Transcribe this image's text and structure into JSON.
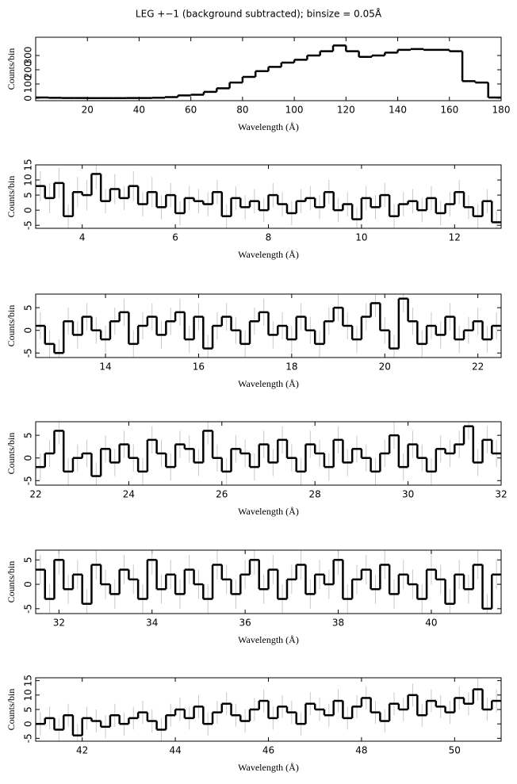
{
  "chart_data": [
    {
      "type": "line",
      "title": "LEG +−1 (background subtracted); binsize = 0.05Å",
      "x_label": "Wavelength (Å)",
      "y_label": "Counts/bin",
      "color": "#000000",
      "xlim": [
        0,
        180
      ],
      "ylim": [
        -17,
        428
      ],
      "xticks": [
        20,
        40,
        60,
        80,
        100,
        120,
        140,
        160,
        180
      ],
      "yticks": [
        0,
        100,
        200,
        300
      ],
      "x": [
        2.5,
        7.5,
        12.5,
        17.5,
        22.5,
        27.5,
        32.5,
        37.5,
        42.5,
        47.5,
        52.5,
        57.5,
        62.5,
        67.5,
        72.5,
        77.5,
        82.5,
        87.5,
        92.5,
        97.5,
        102.5,
        107.5,
        112.5,
        117.5,
        122.5,
        127.5,
        132.5,
        137.5,
        142.5,
        147.5,
        152.5,
        157.5,
        162.5,
        167.5,
        172.5,
        177.5
      ],
      "values": [
        5,
        3,
        2,
        2,
        1,
        1,
        1,
        2,
        2,
        4,
        8,
        20,
        25,
        45,
        70,
        110,
        150,
        190,
        220,
        250,
        270,
        300,
        330,
        370,
        330,
        290,
        300,
        320,
        340,
        345,
        340,
        340,
        330,
        120,
        110,
        5
      ]
    },
    {
      "type": "line",
      "x_label": "Wavelength (Å)",
      "y_label": "Counts/bin",
      "color": "#000000",
      "error_color": "#c8c8c8",
      "xlim": [
        3,
        13
      ],
      "ylim": [
        -6,
        15
      ],
      "xticks": [
        4,
        6,
        8,
        10,
        12
      ],
      "yticks": [
        -5,
        0,
        5,
        10,
        15
      ],
      "x": [
        3.1,
        3.3,
        3.5,
        3.7,
        3.9,
        4.1,
        4.3,
        4.5,
        4.7,
        4.9,
        5.1,
        5.3,
        5.5,
        5.7,
        5.9,
        6.1,
        6.3,
        6.5,
        6.7,
        6.9,
        7.1,
        7.3,
        7.5,
        7.7,
        7.9,
        8.1,
        8.3,
        8.5,
        8.7,
        8.9,
        9.1,
        9.3,
        9.5,
        9.7,
        9.9,
        10.1,
        10.3,
        10.5,
        10.7,
        10.9,
        11.1,
        11.3,
        11.5,
        11.7,
        11.9,
        12.1,
        12.3,
        12.5,
        12.7,
        12.9
      ],
      "values": [
        8,
        4,
        9,
        -2,
        6,
        5,
        12,
        3,
        7,
        4,
        8,
        2,
        6,
        1,
        5,
        -1,
        4,
        3,
        2,
        6,
        -2,
        4,
        1,
        3,
        0,
        5,
        2,
        -1,
        3,
        4,
        1,
        6,
        0,
        2,
        -3,
        4,
        1,
        5,
        -2,
        2,
        3,
        0,
        4,
        -1,
        2,
        6,
        1,
        -2,
        3,
        -4
      ],
      "errors": [
        5,
        5,
        5,
        4,
        5,
        5,
        5,
        4,
        5,
        4,
        5,
        4,
        5,
        4,
        4,
        4,
        4,
        4,
        4,
        4,
        4,
        4,
        4,
        4,
        4,
        4,
        4,
        4,
        4,
        4,
        4,
        4,
        4,
        4,
        4,
        4,
        4,
        4,
        4,
        4,
        4,
        4,
        4,
        4,
        4,
        4,
        4,
        4,
        4,
        4
      ]
    },
    {
      "type": "line",
      "x_label": "Wavelength (Å)",
      "y_label": "Counts/bin",
      "color": "#000000",
      "error_color": "#c8c8c8",
      "xlim": [
        12.5,
        22.5
      ],
      "ylim": [
        -6,
        8
      ],
      "xticks": [
        14,
        16,
        18,
        20,
        22
      ],
      "yticks": [
        -5,
        0,
        5
      ],
      "x": [
        12.6,
        12.8,
        13.0,
        13.2,
        13.4,
        13.6,
        13.8,
        14.0,
        14.2,
        14.4,
        14.6,
        14.8,
        15.0,
        15.2,
        15.4,
        15.6,
        15.8,
        16.0,
        16.2,
        16.4,
        16.6,
        16.8,
        17.0,
        17.2,
        17.4,
        17.6,
        17.8,
        18.0,
        18.2,
        18.4,
        18.6,
        18.8,
        19.0,
        19.2,
        19.4,
        19.6,
        19.8,
        20.0,
        20.2,
        20.4,
        20.6,
        20.8,
        21.0,
        21.2,
        21.4,
        21.6,
        21.8,
        22.0,
        22.2,
        22.4
      ],
      "values": [
        1,
        -3,
        -5,
        2,
        -1,
        3,
        0,
        -2,
        2,
        4,
        -3,
        1,
        3,
        -1,
        2,
        4,
        -2,
        3,
        -4,
        1,
        3,
        0,
        -3,
        2,
        4,
        -1,
        1,
        -2,
        3,
        0,
        -3,
        2,
        5,
        1,
        -2,
        3,
        6,
        0,
        -4,
        7,
        2,
        -3,
        1,
        -1,
        3,
        -2,
        0,
        2,
        -2,
        1
      ],
      "errors": [
        3,
        3,
        3,
        3,
        3,
        3,
        3,
        3,
        3,
        3,
        3,
        3,
        3,
        3,
        3,
        3,
        3,
        3,
        3,
        3,
        3,
        3,
        3,
        3,
        3,
        3,
        3,
        3,
        3,
        3,
        3,
        3,
        3,
        3,
        3,
        3,
        3,
        3,
        3,
        3,
        3,
        3,
        3,
        3,
        3,
        3,
        3,
        3,
        3,
        3
      ]
    },
    {
      "type": "line",
      "x_label": "Wavelength (Å)",
      "y_label": "Counts/bin",
      "color": "#000000",
      "error_color": "#c8c8c8",
      "xlim": [
        22,
        32
      ],
      "ylim": [
        -6,
        8
      ],
      "xticks": [
        22,
        24,
        26,
        28,
        30,
        32
      ],
      "yticks": [
        -5,
        0,
        5
      ],
      "x": [
        22.1,
        22.3,
        22.5,
        22.7,
        22.9,
        23.1,
        23.3,
        23.5,
        23.7,
        23.9,
        24.1,
        24.3,
        24.5,
        24.7,
        24.9,
        25.1,
        25.3,
        25.5,
        25.7,
        25.9,
        26.1,
        26.3,
        26.5,
        26.7,
        26.9,
        27.1,
        27.3,
        27.5,
        27.7,
        27.9,
        28.1,
        28.3,
        28.5,
        28.7,
        28.9,
        29.1,
        29.3,
        29.5,
        29.7,
        29.9,
        30.1,
        30.3,
        30.5,
        30.7,
        30.9,
        31.1,
        31.3,
        31.5,
        31.7,
        31.9
      ],
      "values": [
        -2,
        1,
        6,
        -3,
        0,
        1,
        -4,
        2,
        -1,
        3,
        0,
        -3,
        4,
        1,
        -2,
        3,
        2,
        -1,
        6,
        0,
        -3,
        2,
        1,
        -2,
        3,
        -1,
        4,
        0,
        -3,
        3,
        1,
        -2,
        4,
        -1,
        2,
        0,
        -3,
        1,
        5,
        -2,
        3,
        0,
        -3,
        2,
        1,
        3,
        7,
        -1,
        4,
        1
      ],
      "errors": [
        3,
        3,
        3,
        3,
        3,
        3,
        3,
        3,
        3,
        3,
        3,
        3,
        3,
        3,
        3,
        3,
        3,
        3,
        3,
        3,
        3,
        3,
        3,
        3,
        3,
        3,
        3,
        3,
        3,
        3,
        3,
        3,
        3,
        3,
        3,
        3,
        3,
        3,
        3,
        3,
        3,
        3,
        3,
        3,
        3,
        3,
        3,
        3,
        3,
        3
      ]
    },
    {
      "type": "line",
      "x_label": "Wavelength (Å)",
      "y_label": "Counts/bin",
      "color": "#000000",
      "error_color": "#c8c8c8",
      "xlim": [
        31.5,
        41.5
      ],
      "ylim": [
        -6,
        7
      ],
      "xticks": [
        32,
        34,
        36,
        38,
        40
      ],
      "yticks": [
        -5,
        0,
        5
      ],
      "x": [
        31.6,
        31.8,
        32.0,
        32.2,
        32.4,
        32.6,
        32.8,
        33.0,
        33.2,
        33.4,
        33.6,
        33.8,
        34.0,
        34.2,
        34.4,
        34.6,
        34.8,
        35.0,
        35.2,
        35.4,
        35.6,
        35.8,
        36.0,
        36.2,
        36.4,
        36.6,
        36.8,
        37.0,
        37.2,
        37.4,
        37.6,
        37.8,
        38.0,
        38.2,
        38.4,
        38.6,
        38.8,
        39.0,
        39.2,
        39.4,
        39.6,
        39.8,
        40.0,
        40.2,
        40.4,
        40.6,
        40.8,
        41.0,
        41.2,
        41.4
      ],
      "values": [
        3,
        -3,
        5,
        -1,
        2,
        -4,
        4,
        0,
        -2,
        3,
        1,
        -3,
        5,
        -1,
        2,
        -2,
        3,
        0,
        -3,
        4,
        1,
        -2,
        2,
        5,
        -1,
        3,
        -3,
        1,
        4,
        -2,
        2,
        0,
        5,
        -3,
        1,
        3,
        -1,
        4,
        -2,
        2,
        0,
        -3,
        3,
        1,
        -4,
        2,
        -1,
        4,
        -5,
        2
      ],
      "errors": [
        3,
        3,
        3,
        3,
        3,
        3,
        3,
        3,
        3,
        3,
        3,
        3,
        3,
        3,
        3,
        3,
        3,
        3,
        3,
        3,
        3,
        3,
        3,
        3,
        3,
        3,
        3,
        3,
        3,
        3,
        3,
        3,
        3,
        3,
        3,
        3,
        3,
        3,
        3,
        3,
        3,
        3,
        3,
        3,
        3,
        3,
        3,
        3,
        3,
        3
      ]
    },
    {
      "type": "line",
      "x_label": "Wavelength (Å)",
      "y_label": "Counts/bin",
      "color": "#000000",
      "error_color": "#c8c8c8",
      "xlim": [
        41,
        51
      ],
      "ylim": [
        -6,
        16
      ],
      "xticks": [
        42,
        44,
        46,
        48,
        50
      ],
      "yticks": [
        -5,
        0,
        5,
        10,
        15
      ],
      "x": [
        41.1,
        41.3,
        41.5,
        41.7,
        41.9,
        42.1,
        42.3,
        42.5,
        42.7,
        42.9,
        43.1,
        43.3,
        43.5,
        43.7,
        43.9,
        44.1,
        44.3,
        44.5,
        44.7,
        44.9,
        45.1,
        45.3,
        45.5,
        45.7,
        45.9,
        46.1,
        46.3,
        46.5,
        46.7,
        46.9,
        47.1,
        47.3,
        47.5,
        47.7,
        47.9,
        48.1,
        48.3,
        48.5,
        48.7,
        48.9,
        49.1,
        49.3,
        49.5,
        49.7,
        49.9,
        50.1,
        50.3,
        50.5,
        50.7,
        50.9
      ],
      "values": [
        0,
        2,
        -2,
        3,
        -4,
        2,
        1,
        -1,
        3,
        0,
        2,
        4,
        1,
        -2,
        3,
        5,
        2,
        6,
        0,
        4,
        7,
        3,
        1,
        5,
        8,
        2,
        6,
        4,
        0,
        7,
        5,
        3,
        8,
        2,
        6,
        9,
        4,
        1,
        7,
        5,
        10,
        3,
        8,
        6,
        4,
        9,
        7,
        12,
        5,
        8
      ],
      "errors": [
        4,
        4,
        4,
        4,
        4,
        4,
        4,
        4,
        4,
        4,
        4,
        4,
        4,
        4,
        4,
        4,
        4,
        4,
        4,
        4,
        4,
        4,
        4,
        4,
        4,
        4,
        4,
        4,
        4,
        4,
        4,
        4,
        4,
        4,
        4,
        4,
        4,
        4,
        4,
        4,
        4,
        4,
        4,
        4,
        4,
        4,
        4,
        4,
        4,
        4
      ]
    }
  ]
}
